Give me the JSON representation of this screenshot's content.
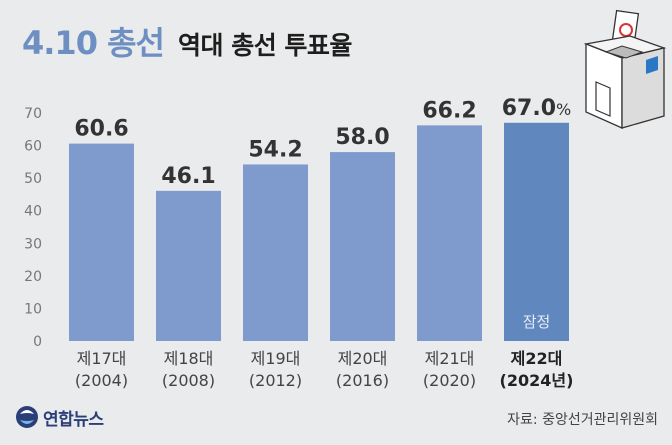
{
  "title": {
    "main": "4.10 총선",
    "sub": "역대 총선 투표율"
  },
  "source": "자료: 중앙선거관리위원회",
  "logo": {
    "text": "연합뉴스"
  },
  "colors": {
    "bar": "#7f9bce",
    "bar_highlight": "#6088bf",
    "title_accent": "#6d8fc2",
    "background": "#e9ebec"
  },
  "chart_data": {
    "type": "bar",
    "categories": [
      "제17대 (2004)",
      "제18대 (2008)",
      "제19대 (2012)",
      "제20대 (2016)",
      "제21대 (2020)",
      "제22대 (2024년)"
    ],
    "category_lines": [
      [
        "제17대",
        "(2004)"
      ],
      [
        "제18대",
        "(2008)"
      ],
      [
        "제19대",
        "(2012)"
      ],
      [
        "제20대",
        "(2016)"
      ],
      [
        "제21대",
        "(2020)"
      ],
      [
        "제22대",
        "(2024년)"
      ]
    ],
    "values": [
      60.6,
      46.1,
      54.2,
      58.0,
      66.2,
      67.0
    ],
    "value_labels": [
      "60.6",
      "46.1",
      "54.2",
      "58.0",
      "66.2",
      "67.0"
    ],
    "value_unit": "%",
    "highlight_index": 5,
    "highlight_note": "잠정",
    "ylim": [
      0,
      70
    ],
    "yticks": [
      0,
      10,
      20,
      30,
      40,
      50,
      60,
      70
    ],
    "grid": false,
    "xlabel": "",
    "ylabel": ""
  }
}
